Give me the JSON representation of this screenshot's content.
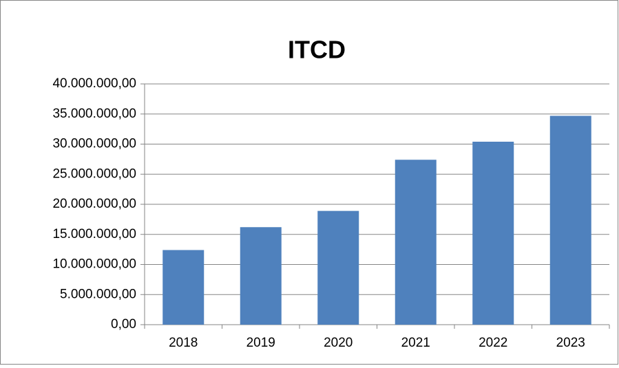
{
  "chart_data": {
    "type": "bar",
    "title": "ITCD",
    "categories": [
      "2018",
      "2019",
      "2020",
      "2021",
      "2022",
      "2023"
    ],
    "values": [
      12400000,
      16200000,
      18900000,
      27400000,
      30400000,
      34700000
    ],
    "color": "#4f81bd",
    "ylim": [
      0,
      40000000
    ],
    "yticks": [
      {
        "value": 0,
        "label": "0,00"
      },
      {
        "value": 5000000,
        "label": "5.000.000,00"
      },
      {
        "value": 10000000,
        "label": "10.000.000,00"
      },
      {
        "value": 15000000,
        "label": "15.000.000,00"
      },
      {
        "value": 20000000,
        "label": "20.000.000,00"
      },
      {
        "value": 25000000,
        "label": "25.000.000,00"
      },
      {
        "value": 30000000,
        "label": "30.000.000,00"
      },
      {
        "value": 35000000,
        "label": "35.000.000,00"
      },
      {
        "value": 40000000,
        "label": "40.000.000,00"
      }
    ],
    "grid": true
  }
}
